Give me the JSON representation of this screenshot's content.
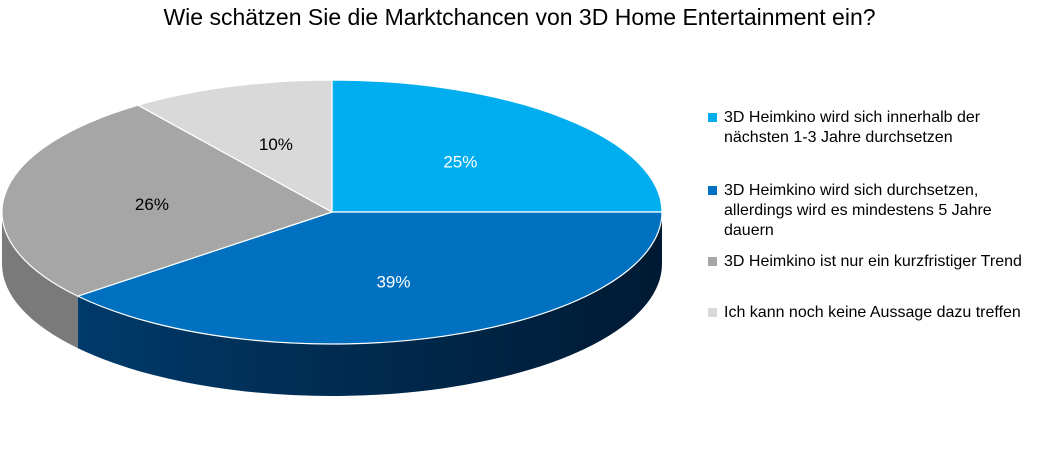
{
  "chart_data": {
    "type": "pie",
    "title": "Wie schätzen Sie die Marktchancen von 3D Home Entertainment ein?",
    "categories": [
      "3D Heimkino wird sich innerhalb der nächsten 1-3 Jahre durchsetzen",
      "3D Heimkino wird sich durchsetzen, allerdings wird es mindestens 5 Jahre dauern",
      "3D Heimkino ist nur ein kurzfristiger Trend",
      "Ich kann noch keine Aussage dazu treffen"
    ],
    "values": [
      25,
      39,
      26,
      10
    ],
    "value_labels": [
      "25%",
      "39%",
      "26%",
      "10%"
    ],
    "colors": [
      "#00aeef",
      "#0070c0",
      "#a6a6a6",
      "#d9d9d9"
    ],
    "side_colors": [
      "#0088c0",
      "#003a6a",
      "#7a7a7a",
      "#b5b5b5"
    ],
    "label_colors": [
      "#ffffff",
      "#ffffff",
      "#000000",
      "#000000"
    ],
    "legend_position": "right",
    "style": "3d"
  }
}
